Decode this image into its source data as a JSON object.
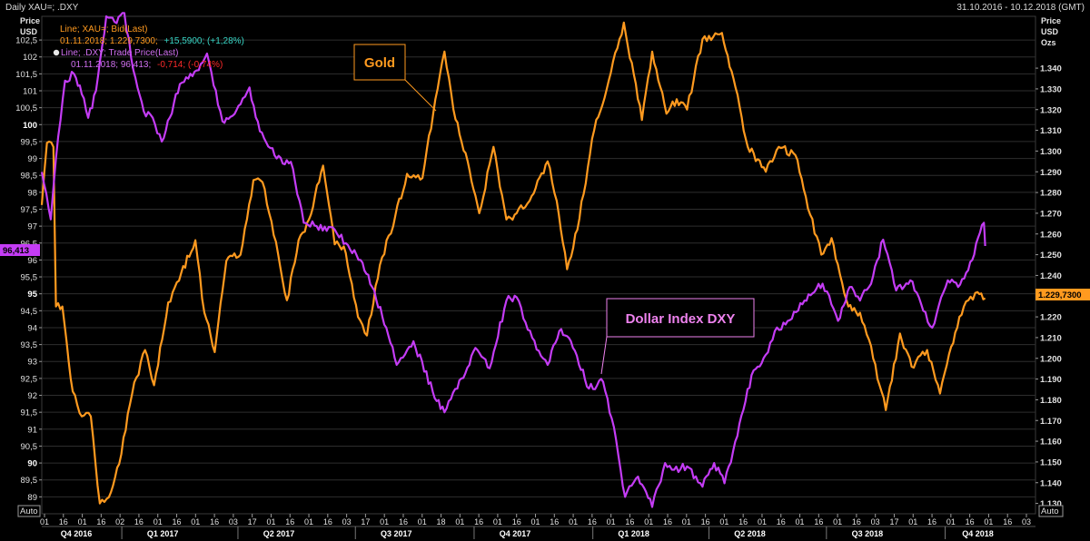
{
  "header": {
    "title": "Daily XAU=; .DXY",
    "date_range": "31.10.2016 - 10.12.2018 (GMT)"
  },
  "left_axis": {
    "title_line1": "Price",
    "title_line2": "USD",
    "auto_label": "Auto"
  },
  "right_axis": {
    "title_line1": "Price",
    "title_line2": "USD",
    "title_line3": "Ozs",
    "auto_label": "Auto"
  },
  "legend": {
    "gold_series": "Line; XAU=; Bid(Last)",
    "gold_date_value": "01.11.2018; 1.229,7300;",
    "gold_change": "+15,5900; (+1,28%)",
    "dxy_series": "Line; .DXY; Trade Price(Last)",
    "dxy_date_value": "01.11.2018; 96,413;",
    "dxy_change": "-0,714; (-0,74%)"
  },
  "callouts": {
    "gold": "Gold",
    "dxy": "Dollar Index DXY"
  },
  "last_value_tags": {
    "dxy": "96,413",
    "gold": "1.229,7300"
  },
  "colors": {
    "background": "#000000",
    "grid": "#2e2e2e",
    "gold": "#ff9a1f",
    "dxy": "#c43cf5",
    "legend_gold_text": "#ff9a1f",
    "legend_dxy_text": "#d070f0",
    "positive_change": "#38d6c6",
    "negative_change": "#ff2a2a",
    "gold_callout_border": "#ff9a1f",
    "dxy_callout_border": "#ee82ee"
  },
  "chart_data": {
    "type": "line",
    "x_axis": {
      "day_ticks": [
        "01",
        "16",
        "01",
        "16",
        "02",
        "16",
        "01",
        "16",
        "01",
        "16",
        "03",
        "17",
        "01",
        "16",
        "01",
        "16",
        "03",
        "17",
        "01",
        "16",
        "01",
        "18",
        "01",
        "16",
        "01",
        "16",
        "01",
        "16",
        "01",
        "16",
        "01",
        "16",
        "01",
        "16",
        "01",
        "16",
        "01",
        "16",
        "01",
        "16",
        "01",
        "16",
        "01",
        "16",
        "03",
        "17",
        "01",
        "16",
        "01",
        "16",
        "01",
        "16",
        "03"
      ],
      "quarter_labels": [
        "Q4 2016",
        "Q1 2017",
        "Q2 2017",
        "Q3 2017",
        "Q4 2017",
        "Q1 2018",
        "Q2 2018",
        "Q3 2018",
        "Q4 2018"
      ],
      "range": [
        "31.10.2016",
        "10.12.2018"
      ]
    },
    "left_axis": {
      "label": "Price USD",
      "ylim": [
        88.5,
        103.2
      ],
      "ticks": [
        "89",
        "89,5",
        "90",
        "90,5",
        "91",
        "91,5",
        "92",
        "92,5",
        "93",
        "93,5",
        "94",
        "94,5",
        "95",
        "95,5",
        "96",
        "96,5",
        "97",
        "97,5",
        "98",
        "98,5",
        "99",
        "99,5",
        "100",
        "100,5",
        "101",
        "101,5",
        "102",
        "102,5"
      ],
      "bold_ticks": [
        "90",
        "95",
        "100"
      ]
    },
    "right_axis": {
      "label": "Price USD Ozs",
      "ylim": [
        1.125,
        1.365
      ],
      "ticks": [
        "1.130",
        "1.140",
        "1.150",
        "1.160",
        "1.170",
        "1.180",
        "1.190",
        "1.200",
        "1.210",
        "1.220",
        "1.230",
        "1.240",
        "1.250",
        "1.260",
        "1.270",
        "1.280",
        "1.290",
        "1.300",
        "1.310",
        "1.320",
        "1.330",
        "1.340"
      ]
    },
    "series": [
      {
        "name": "Line; XAU=; Bid(Last)",
        "axis": "right",
        "color": "#ff9a1f",
        "points": [
          [
            "2016-10-31",
            1.274
          ],
          [
            "2016-11-04",
            1.304
          ],
          [
            "2016-11-09",
            1.302
          ],
          [
            "2016-11-11",
            1.225
          ],
          [
            "2016-11-16",
            1.225
          ],
          [
            "2016-11-24",
            1.184
          ],
          [
            "2016-12-01",
            1.172
          ],
          [
            "2016-12-08",
            1.172
          ],
          [
            "2016-12-15",
            1.13
          ],
          [
            "2016-12-22",
            1.133
          ],
          [
            "2016-12-30",
            1.149
          ],
          [
            "2017-01-09",
            1.183
          ],
          [
            "2017-01-19",
            1.204
          ],
          [
            "2017-01-26",
            1.187
          ],
          [
            "2017-02-06",
            1.227
          ],
          [
            "2017-02-16",
            1.241
          ],
          [
            "2017-02-27",
            1.257
          ],
          [
            "2017-03-06",
            1.222
          ],
          [
            "2017-03-14",
            1.203
          ],
          [
            "2017-03-23",
            1.247
          ],
          [
            "2017-04-03",
            1.25
          ],
          [
            "2017-04-13",
            1.286
          ],
          [
            "2017-04-20",
            1.285
          ],
          [
            "2017-04-27",
            1.266
          ],
          [
            "2017-05-09",
            1.228
          ],
          [
            "2017-05-18",
            1.257
          ],
          [
            "2017-05-26",
            1.267
          ],
          [
            "2017-06-06",
            1.293
          ],
          [
            "2017-06-15",
            1.255
          ],
          [
            "2017-06-22",
            1.254
          ],
          [
            "2017-07-03",
            1.22
          ],
          [
            "2017-07-10",
            1.211
          ],
          [
            "2017-07-20",
            1.245
          ],
          [
            "2017-08-01",
            1.269
          ],
          [
            "2017-08-10",
            1.289
          ],
          [
            "2017-08-22",
            1.287
          ],
          [
            "2017-09-01",
            1.325
          ],
          [
            "2017-09-08",
            1.348
          ],
          [
            "2017-09-15",
            1.32
          ],
          [
            "2017-09-26",
            1.295
          ],
          [
            "2017-10-05",
            1.27
          ],
          [
            "2017-10-16",
            1.302
          ],
          [
            "2017-10-26",
            1.267
          ],
          [
            "2017-11-03",
            1.27
          ],
          [
            "2017-11-13",
            1.276
          ],
          [
            "2017-11-27",
            1.295
          ],
          [
            "2017-12-04",
            1.276
          ],
          [
            "2017-12-12",
            1.243
          ],
          [
            "2017-12-20",
            1.262
          ],
          [
            "2018-01-02",
            1.31
          ],
          [
            "2018-01-15",
            1.338
          ],
          [
            "2018-01-25",
            1.362
          ],
          [
            "2018-02-08",
            1.315
          ],
          [
            "2018-02-16",
            1.348
          ],
          [
            "2018-02-27",
            1.318
          ],
          [
            "2018-03-07",
            1.325
          ],
          [
            "2018-03-15",
            1.32
          ],
          [
            "2018-03-27",
            1.354
          ],
          [
            "2018-04-11",
            1.357
          ],
          [
            "2018-04-20",
            1.335
          ],
          [
            "2018-05-01",
            1.302
          ],
          [
            "2018-05-15",
            1.29
          ],
          [
            "2018-05-25",
            1.302
          ],
          [
            "2018-06-07",
            1.298
          ],
          [
            "2018-06-15",
            1.278
          ],
          [
            "2018-06-27",
            1.25
          ],
          [
            "2018-07-05",
            1.258
          ],
          [
            "2018-07-18",
            1.225
          ],
          [
            "2018-07-27",
            1.222
          ],
          [
            "2018-08-03",
            1.209
          ],
          [
            "2018-08-16",
            1.175
          ],
          [
            "2018-08-27",
            1.212
          ],
          [
            "2018-09-05",
            1.196
          ],
          [
            "2018-09-17",
            1.204
          ],
          [
            "2018-09-27",
            1.183
          ],
          [
            "2018-10-04",
            1.202
          ],
          [
            "2018-10-12",
            1.22
          ],
          [
            "2018-10-19",
            1.228
          ],
          [
            "2018-10-26",
            1.232
          ],
          [
            "2018-11-01",
            1.229
          ]
        ]
      },
      {
        "name": "Line; .DXY; Trade Price(Last)",
        "axis": "left",
        "color": "#c43cf5",
        "points": [
          [
            "2016-10-31",
            98.6
          ],
          [
            "2016-11-07",
            97.2
          ],
          [
            "2016-11-11",
            99.0
          ],
          [
            "2016-11-18",
            101.3
          ],
          [
            "2016-11-25",
            101.5
          ],
          [
            "2016-12-01",
            100.9
          ],
          [
            "2016-12-06",
            100.2
          ],
          [
            "2016-12-12",
            101.0
          ],
          [
            "2016-12-20",
            103.2
          ],
          [
            "2016-12-28",
            103.0
          ],
          [
            "2017-01-03",
            103.3
          ],
          [
            "2017-01-10",
            101.6
          ],
          [
            "2017-01-18",
            100.4
          ],
          [
            "2017-01-25",
            100.2
          ],
          [
            "2017-02-01",
            99.5
          ],
          [
            "2017-02-15",
            101.2
          ],
          [
            "2017-02-28",
            101.6
          ],
          [
            "2017-03-08",
            102.1
          ],
          [
            "2017-03-20",
            100.1
          ],
          [
            "2017-04-03",
            100.6
          ],
          [
            "2017-04-10",
            101.1
          ],
          [
            "2017-04-18",
            99.8
          ],
          [
            "2017-05-01",
            99.0
          ],
          [
            "2017-05-12",
            98.9
          ],
          [
            "2017-05-22",
            97.1
          ],
          [
            "2017-06-01",
            97.0
          ],
          [
            "2017-06-15",
            96.9
          ],
          [
            "2017-06-27",
            96.3
          ],
          [
            "2017-07-05",
            96.0
          ],
          [
            "2017-07-14",
            95.2
          ],
          [
            "2017-07-25",
            94.0
          ],
          [
            "2017-08-02",
            92.9
          ],
          [
            "2017-08-15",
            93.6
          ],
          [
            "2017-08-30",
            92.1
          ],
          [
            "2017-09-08",
            91.5
          ],
          [
            "2017-09-18",
            92.2
          ],
          [
            "2017-10-02",
            93.4
          ],
          [
            "2017-10-13",
            92.8
          ],
          [
            "2017-10-26",
            94.8
          ],
          [
            "2017-11-03",
            94.9
          ],
          [
            "2017-11-15",
            93.7
          ],
          [
            "2017-11-27",
            92.9
          ],
          [
            "2017-12-06",
            93.9
          ],
          [
            "2017-12-15",
            93.6
          ],
          [
            "2017-12-29",
            92.2
          ],
          [
            "2018-01-09",
            92.4
          ],
          [
            "2018-01-19",
            90.7
          ],
          [
            "2018-01-26",
            89.0
          ],
          [
            "2018-02-05",
            89.6
          ],
          [
            "2018-02-16",
            88.7
          ],
          [
            "2018-02-26",
            90.0
          ],
          [
            "2018-03-05",
            89.8
          ],
          [
            "2018-03-15",
            89.9
          ],
          [
            "2018-03-27",
            89.3
          ],
          [
            "2018-04-05",
            90.0
          ],
          [
            "2018-04-13",
            89.4
          ],
          [
            "2018-04-23",
            90.8
          ],
          [
            "2018-05-04",
            92.6
          ],
          [
            "2018-05-15",
            93.2
          ],
          [
            "2018-05-22",
            93.9
          ],
          [
            "2018-06-01",
            94.2
          ],
          [
            "2018-06-14",
            94.8
          ],
          [
            "2018-06-28",
            95.3
          ],
          [
            "2018-07-10",
            94.2
          ],
          [
            "2018-07-19",
            95.2
          ],
          [
            "2018-07-27",
            94.8
          ],
          [
            "2018-08-03",
            95.2
          ],
          [
            "2018-08-14",
            96.6
          ],
          [
            "2018-08-24",
            95.1
          ],
          [
            "2018-09-04",
            95.4
          ],
          [
            "2018-09-14",
            94.5
          ],
          [
            "2018-09-21",
            94.0
          ],
          [
            "2018-10-03",
            95.4
          ],
          [
            "2018-10-11",
            95.2
          ],
          [
            "2018-10-22",
            96.0
          ],
          [
            "2018-10-31",
            97.1
          ],
          [
            "2018-11-01",
            96.413
          ]
        ]
      }
    ],
    "legend_position": "top-left",
    "grid": true
  }
}
